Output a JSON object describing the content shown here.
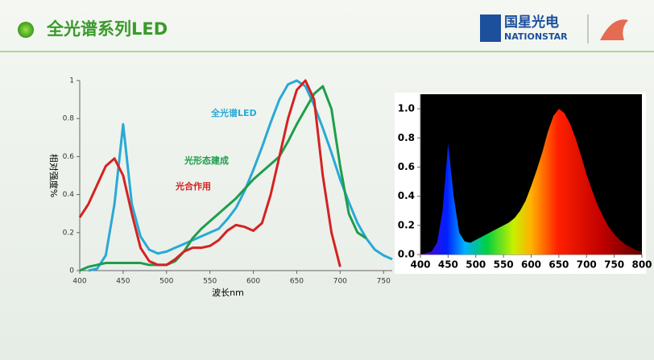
{
  "header": {
    "title": "全光谱系列LED",
    "logo_cn": "国星光电",
    "logo_en": "NATIONSTAR"
  },
  "chart_data": [
    {
      "type": "line",
      "xlabel": "波长nm",
      "ylabel": "相对强度%",
      "x": [
        400,
        410,
        420,
        430,
        440,
        450,
        460,
        470,
        480,
        490,
        500,
        510,
        520,
        530,
        540,
        550,
        560,
        570,
        580,
        590,
        600,
        610,
        620,
        630,
        640,
        650,
        660,
        670,
        680,
        690,
        700,
        710,
        720,
        730,
        740,
        750,
        760
      ],
      "xlim": [
        400,
        760
      ],
      "ylim": [
        0,
        1
      ],
      "xticks": [
        400,
        450,
        500,
        550,
        600,
        650,
        700,
        750
      ],
      "yticks": [
        0,
        0.2,
        0.4,
        0.6,
        0.8,
        1
      ],
      "series": [
        {
          "name": "全光谱LED",
          "color": "#29a9d6",
          "values": [
            null,
            0,
            0.01,
            0.08,
            0.35,
            0.77,
            0.35,
            0.18,
            0.11,
            0.09,
            0.1,
            0.12,
            0.14,
            0.16,
            0.18,
            0.2,
            0.22,
            0.27,
            0.33,
            0.42,
            0.53,
            0.65,
            0.78,
            0.9,
            0.98,
            1,
            0.97,
            0.87,
            0.75,
            0.62,
            0.48,
            0.36,
            0.25,
            0.17,
            0.11,
            0.08,
            0.06
          ]
        },
        {
          "name": "光形态建成",
          "color": "#1e9e4c",
          "values": [
            0,
            0.02,
            0.03,
            0.04,
            0.04,
            0.04,
            0.04,
            0.04,
            0.03,
            0.03,
            0.03,
            0.05,
            0.1,
            0.17,
            0.22,
            0.26,
            0.3,
            0.34,
            0.38,
            0.43,
            0.48,
            0.52,
            0.56,
            0.6,
            0.68,
            0.77,
            0.85,
            0.93,
            0.97,
            0.85,
            0.55,
            0.3,
            0.2,
            0.17,
            null,
            null,
            null
          ]
        },
        {
          "name": "光合作用",
          "color": "#d42222",
          "values": [
            0.28,
            0.35,
            0.45,
            0.55,
            0.59,
            0.5,
            0.3,
            0.12,
            0.05,
            0.03,
            0.03,
            0.06,
            0.1,
            0.12,
            0.12,
            0.13,
            0.16,
            0.21,
            0.24,
            0.23,
            0.21,
            0.25,
            0.4,
            0.6,
            0.8,
            0.95,
            1,
            0.9,
            0.5,
            0.2,
            0.02,
            null,
            null,
            null,
            null,
            null,
            null
          ]
        }
      ]
    },
    {
      "type": "spectrum",
      "x": [
        400,
        410,
        420,
        430,
        440,
        450,
        460,
        470,
        480,
        490,
        500,
        510,
        520,
        530,
        540,
        550,
        560,
        570,
        580,
        590,
        600,
        610,
        620,
        630,
        640,
        650,
        660,
        670,
        680,
        690,
        700,
        710,
        720,
        730,
        740,
        750,
        760,
        770,
        780,
        790,
        800
      ],
      "values": [
        0,
        0.01,
        0.02,
        0.08,
        0.3,
        0.76,
        0.4,
        0.15,
        0.09,
        0.08,
        0.1,
        0.12,
        0.14,
        0.16,
        0.18,
        0.2,
        0.22,
        0.25,
        0.3,
        0.37,
        0.47,
        0.58,
        0.7,
        0.84,
        0.95,
        1,
        0.97,
        0.9,
        0.8,
        0.68,
        0.55,
        0.44,
        0.34,
        0.26,
        0.19,
        0.14,
        0.1,
        0.07,
        0.05,
        0.03,
        0.02
      ],
      "xlim": [
        400,
        800
      ],
      "ylim": [
        0,
        1.1
      ],
      "xticks": [
        400,
        450,
        500,
        550,
        600,
        650,
        700,
        750,
        800
      ],
      "yticks": [
        {
          "value": 0,
          "label": "0.0"
        },
        0.2,
        0.4,
        0.6,
        0.8,
        {
          "value": 1,
          "label": "1.0"
        }
      ]
    }
  ]
}
